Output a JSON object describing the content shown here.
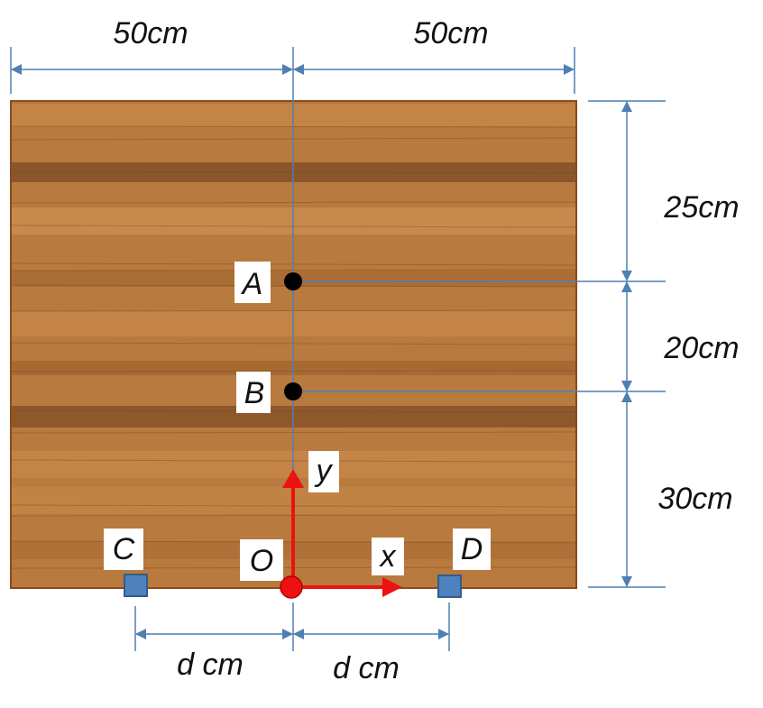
{
  "colors": {
    "wood_base": "#b87a3e",
    "wood_dark": "#8a5426",
    "wood_light": "#d29a5c",
    "border": "#8b4a1c",
    "dimension_line": "#4f7fb3",
    "axis": "#ee1111",
    "point": "#000000",
    "support": "#4f81bd"
  },
  "dimensions": {
    "top_left": "50cm",
    "top_right": "50cm",
    "right_upper": "25cm",
    "right_middle": "20cm",
    "right_lower": "30cm",
    "bottom_left": "d cm",
    "bottom_right": "d cm"
  },
  "points": {
    "A": "A",
    "B": "B",
    "C": "C",
    "D": "D",
    "O": "O"
  },
  "axes": {
    "x": "x",
    "y": "y"
  }
}
